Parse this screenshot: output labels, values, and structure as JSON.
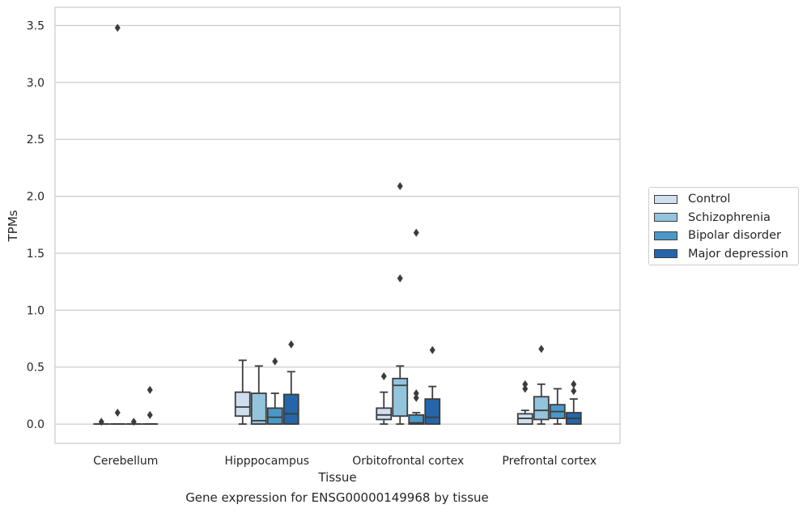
{
  "chart_data": {
    "type": "box",
    "title": "",
    "caption": "Gene expression for ENSG00000149968 by tissue",
    "xlabel": "Tissue",
    "ylabel": "TPMs",
    "ylim": [
      -0.17,
      3.66
    ],
    "yticks": [
      0.0,
      0.5,
      1.0,
      1.5,
      2.0,
      2.5,
      3.0,
      3.5
    ],
    "ytick_labels": [
      "0.0",
      "0.5",
      "1.0",
      "1.5",
      "2.0",
      "2.5",
      "3.0",
      "3.5"
    ],
    "grid": "horizontal",
    "legend_position": "right",
    "categories": [
      "Cerebellum",
      "Hipppocampus",
      "Orbitofrontal cortex",
      "Prefrontal cortex"
    ],
    "series": [
      {
        "name": "Control",
        "color": "#cfdff0",
        "boxes": [
          {
            "q1": 0.0,
            "median": 0.0,
            "q3": 0.0,
            "whislo": 0.0,
            "whishi": 0.0,
            "fliers": [
              0.02
            ]
          },
          {
            "q1": 0.07,
            "median": 0.15,
            "q3": 0.28,
            "whislo": 0.0,
            "whishi": 0.56,
            "fliers": []
          },
          {
            "q1": 0.04,
            "median": 0.08,
            "q3": 0.14,
            "whislo": 0.0,
            "whishi": 0.28,
            "fliers": [
              0.42
            ]
          },
          {
            "q1": 0.0,
            "median": 0.05,
            "q3": 0.09,
            "whislo": 0.0,
            "whishi": 0.12,
            "fliers": [
              0.31,
              0.35
            ]
          }
        ]
      },
      {
        "name": "Schizophrenia",
        "color": "#93c4de",
        "boxes": [
          {
            "q1": 0.0,
            "median": 0.0,
            "q3": 0.0,
            "whislo": 0.0,
            "whishi": 0.0,
            "fliers": [
              0.1,
              3.48
            ]
          },
          {
            "q1": 0.0,
            "median": 0.03,
            "q3": 0.27,
            "whislo": 0.0,
            "whishi": 0.51,
            "fliers": []
          },
          {
            "q1": 0.07,
            "median": 0.34,
            "q3": 0.4,
            "whislo": 0.0,
            "whishi": 0.51,
            "fliers": [
              1.28,
              2.09
            ]
          },
          {
            "q1": 0.04,
            "median": 0.12,
            "q3": 0.24,
            "whislo": 0.0,
            "whishi": 0.35,
            "fliers": [
              0.66
            ]
          }
        ]
      },
      {
        "name": "Bipolar disorder",
        "color": "#4a98c9",
        "boxes": [
          {
            "q1": 0.0,
            "median": 0.0,
            "q3": 0.0,
            "whislo": 0.0,
            "whishi": 0.0,
            "fliers": [
              0.02
            ]
          },
          {
            "q1": 0.0,
            "median": 0.06,
            "q3": 0.14,
            "whislo": 0.0,
            "whishi": 0.27,
            "fliers": [
              0.55
            ]
          },
          {
            "q1": 0.0,
            "median": 0.01,
            "q3": 0.08,
            "whislo": 0.0,
            "whishi": 0.1,
            "fliers": [
              0.23,
              0.27,
              1.68
            ]
          },
          {
            "q1": 0.05,
            "median": 0.11,
            "q3": 0.17,
            "whislo": 0.0,
            "whishi": 0.31,
            "fliers": []
          }
        ]
      },
      {
        "name": "Major depression",
        "color": "#2466a9",
        "boxes": [
          {
            "q1": 0.0,
            "median": 0.0,
            "q3": 0.0,
            "whislo": 0.0,
            "whishi": 0.0,
            "fliers": [
              0.08,
              0.3
            ]
          },
          {
            "q1": 0.0,
            "median": 0.09,
            "q3": 0.26,
            "whislo": 0.0,
            "whishi": 0.46,
            "fliers": [
              0.7
            ]
          },
          {
            "q1": 0.0,
            "median": 0.06,
            "q3": 0.22,
            "whislo": 0.0,
            "whishi": 0.33,
            "fliers": [
              0.65
            ]
          },
          {
            "q1": 0.0,
            "median": 0.05,
            "q3": 0.1,
            "whislo": 0.0,
            "whishi": 0.22,
            "fliers": [
              0.29,
              0.35
            ]
          }
        ]
      }
    ]
  }
}
